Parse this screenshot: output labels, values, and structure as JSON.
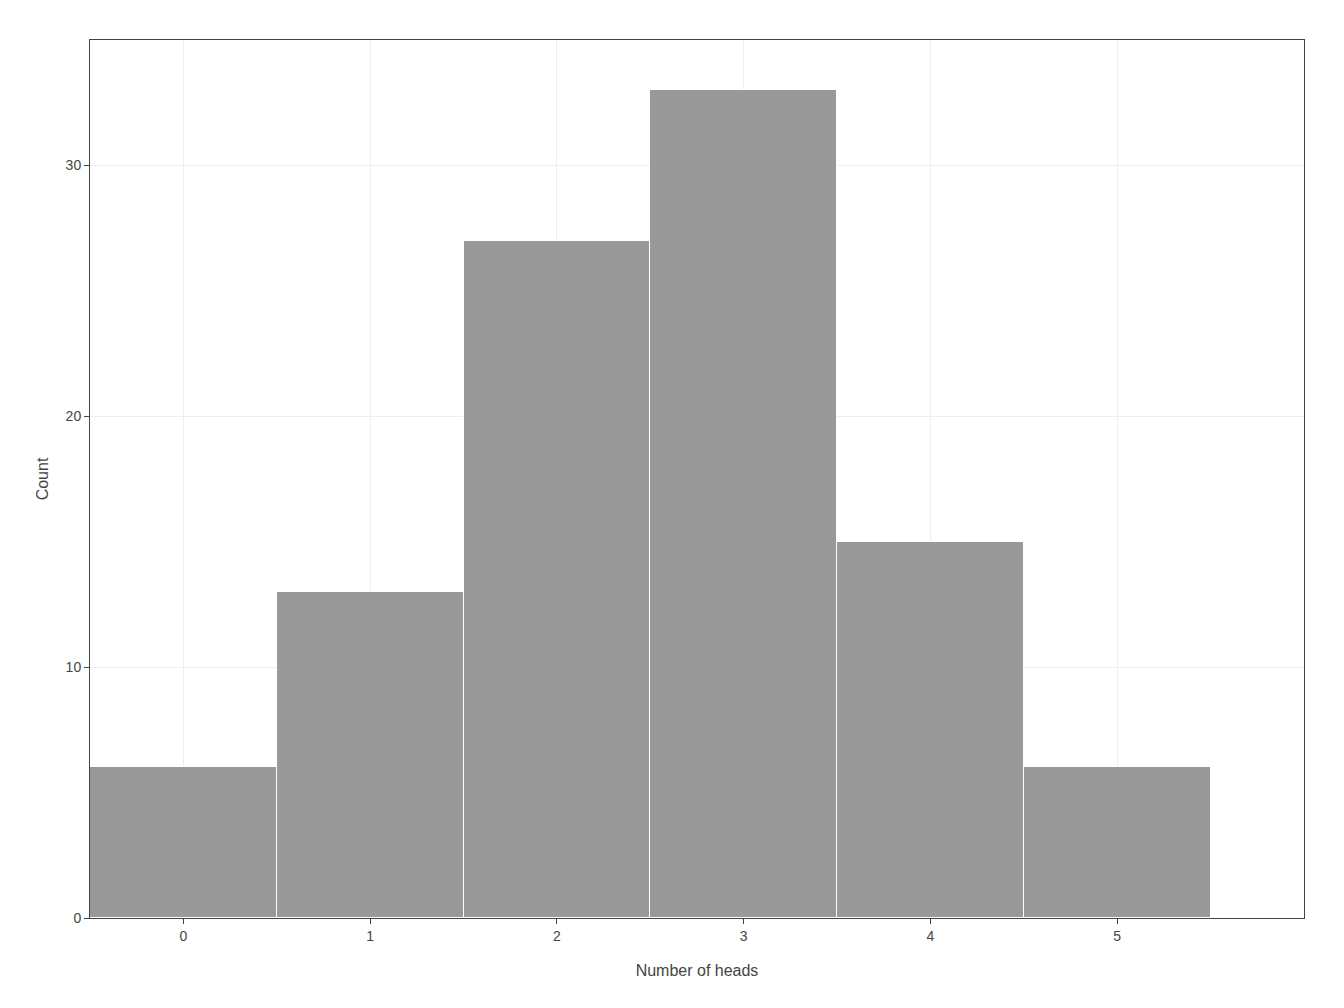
{
  "chart_data": {
    "type": "bar",
    "x": [
      0,
      1,
      2,
      3,
      4,
      5
    ],
    "values": [
      6,
      13,
      27,
      33,
      15,
      6
    ],
    "color": "#999999",
    "xlabel": "Number of heads",
    "ylabel": "Count",
    "xlim": [
      -0.5,
      6.0
    ],
    "ylim": [
      0,
      35
    ],
    "xticks": [
      0,
      1,
      2,
      3,
      4,
      5
    ],
    "yticks": [
      0,
      10,
      20,
      30
    ],
    "grid": true
  }
}
